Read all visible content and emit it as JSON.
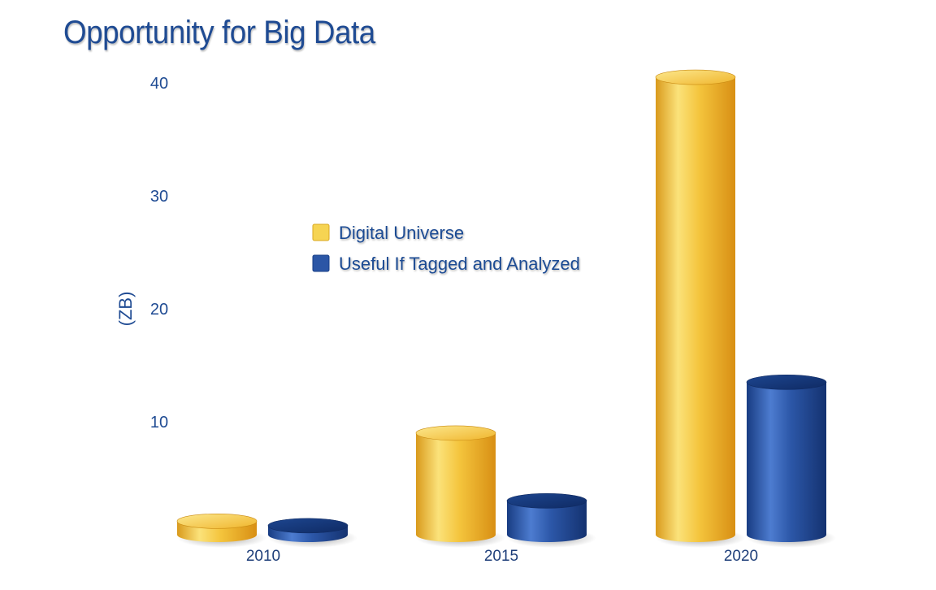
{
  "chart_data": {
    "type": "bar",
    "title": "Opportunity for Big Data",
    "xlabel": "",
    "ylabel": "(ZB)",
    "categories": [
      "2010",
      "2015",
      "2020"
    ],
    "series": [
      {
        "name": "Digital Universe",
        "color": "#f2c13a",
        "values": [
          1.2,
          9,
          40.5
        ]
      },
      {
        "name": "Useful If Tagged and Analyzed",
        "color": "#2b56a6",
        "values": [
          0.8,
          3,
          13.5
        ]
      }
    ],
    "ylim": [
      0,
      40
    ],
    "yticks": [
      10,
      20,
      30,
      40
    ],
    "grid": false,
    "legend": "center-left",
    "style": "3d-cylinder"
  }
}
